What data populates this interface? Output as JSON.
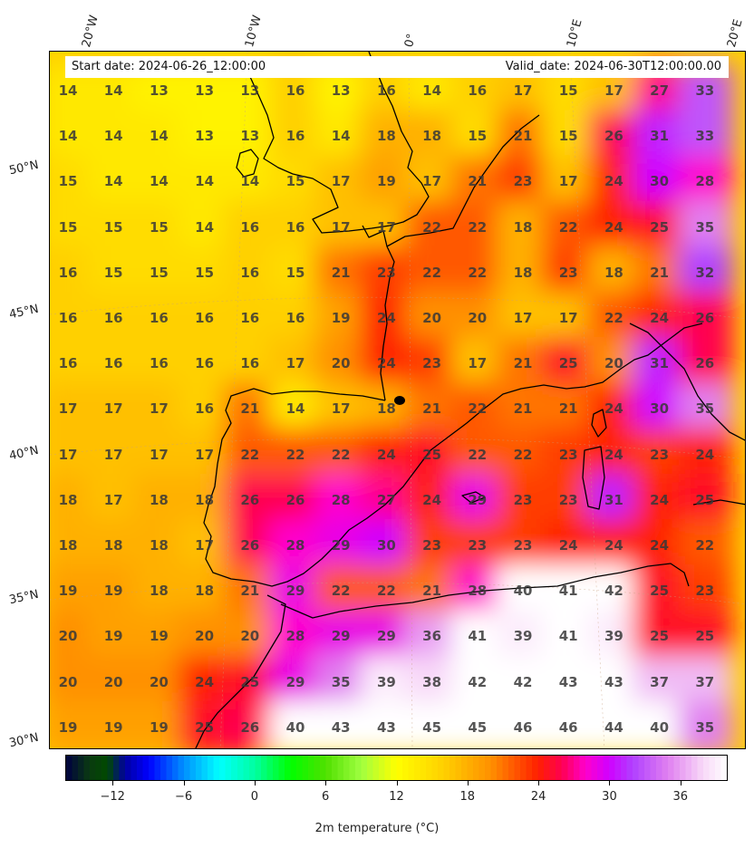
{
  "header": {
    "start_date": "Start date: 2024-06-26_12:00:00",
    "valid_date": "Valid_date: 2024-06-30T12:00:00.00"
  },
  "lon_labels": [
    "20°W",
    "10°W",
    "0°",
    "10°E",
    "20°E"
  ],
  "lat_labels": [
    "50°N",
    "45°N",
    "40°N",
    "35°N",
    "30°N"
  ],
  "grid_values": [
    [
      "14",
      "14",
      "13",
      "13",
      "13",
      "16",
      "13",
      "16",
      "14",
      "16",
      "17",
      "15",
      "17",
      "27",
      "33"
    ],
    [
      "14",
      "14",
      "14",
      "13",
      "13",
      "16",
      "14",
      "18",
      "18",
      "15",
      "21",
      "15",
      "26",
      "31",
      "33"
    ],
    [
      "15",
      "14",
      "14",
      "14",
      "14",
      "15",
      "17",
      "19",
      "17",
      "21",
      "23",
      "17",
      "24",
      "30",
      "28"
    ],
    [
      "15",
      "15",
      "15",
      "14",
      "16",
      "16",
      "17",
      "17",
      "22",
      "22",
      "18",
      "22",
      "24",
      "25",
      "35"
    ],
    [
      "16",
      "15",
      "15",
      "15",
      "16",
      "15",
      "21",
      "23",
      "22",
      "22",
      "18",
      "23",
      "18",
      "21",
      "32"
    ],
    [
      "16",
      "16",
      "16",
      "16",
      "16",
      "16",
      "19",
      "24",
      "20",
      "20",
      "17",
      "17",
      "22",
      "24",
      "26"
    ],
    [
      "16",
      "16",
      "16",
      "16",
      "16",
      "17",
      "20",
      "24",
      "23",
      "17",
      "21",
      "25",
      "20",
      "31",
      "26"
    ],
    [
      "17",
      "17",
      "17",
      "16",
      "21",
      "14",
      "17",
      "18",
      "21",
      "22",
      "21",
      "21",
      "24",
      "30",
      "35"
    ],
    [
      "17",
      "17",
      "17",
      "17",
      "22",
      "22",
      "22",
      "24",
      "25",
      "22",
      "22",
      "23",
      "24",
      "23",
      "24"
    ],
    [
      "18",
      "17",
      "18",
      "18",
      "26",
      "26",
      "28",
      "27",
      "24",
      "29",
      "23",
      "23",
      "31",
      "24",
      "25"
    ],
    [
      "18",
      "18",
      "18",
      "17",
      "26",
      "28",
      "29",
      "30",
      "23",
      "23",
      "23",
      "24",
      "24",
      "24",
      "22"
    ],
    [
      "19",
      "19",
      "18",
      "18",
      "21",
      "29",
      "22",
      "22",
      "21",
      "28",
      "40",
      "41",
      "42",
      "25",
      "23"
    ],
    [
      "20",
      "19",
      "19",
      "20",
      "20",
      "28",
      "29",
      "29",
      "36",
      "41",
      "39",
      "41",
      "39",
      "25",
      "25"
    ],
    [
      "20",
      "20",
      "20",
      "24",
      "25",
      "29",
      "35",
      "39",
      "38",
      "42",
      "42",
      "43",
      "43",
      "37",
      "37"
    ],
    [
      "19",
      "19",
      "19",
      "25",
      "26",
      "40",
      "43",
      "43",
      "45",
      "45",
      "46",
      "46",
      "44",
      "40",
      "35"
    ]
  ],
  "colorbar": {
    "title": "2m temperature ($^\\circ$C)",
    "title_display": "2m temperature (°C)",
    "tick_labels": [
      "−12",
      "−6",
      "0",
      "6",
      "12",
      "18",
      "24",
      "30",
      "36"
    ],
    "tick_values": [
      -12,
      -6,
      0,
      6,
      12,
      18,
      24,
      30,
      36
    ],
    "range": [
      -16,
      40
    ],
    "stops": [
      {
        "v": -16,
        "c": "#000040"
      },
      {
        "v": -14,
        "c": "#0a3a10"
      },
      {
        "v": -12.5,
        "c": "#004a00"
      },
      {
        "v": -11,
        "c": "#0000a0"
      },
      {
        "v": -9,
        "c": "#0000ff"
      },
      {
        "v": -6,
        "c": "#0090ff"
      },
      {
        "v": -3,
        "c": "#00ffff"
      },
      {
        "v": 0,
        "c": "#00ffa0"
      },
      {
        "v": 3,
        "c": "#00ff00"
      },
      {
        "v": 6,
        "c": "#50e000"
      },
      {
        "v": 9,
        "c": "#a0ff40"
      },
      {
        "v": 12,
        "c": "#ffff00"
      },
      {
        "v": 16,
        "c": "#ffd000"
      },
      {
        "v": 20,
        "c": "#ff9000"
      },
      {
        "v": 24,
        "c": "#ff2000"
      },
      {
        "v": 26,
        "c": "#ff0050"
      },
      {
        "v": 28,
        "c": "#ff00cc"
      },
      {
        "v": 30,
        "c": "#d000ff"
      },
      {
        "v": 32,
        "c": "#b040ff"
      },
      {
        "v": 35,
        "c": "#e080f0"
      },
      {
        "v": 38,
        "c": "#f8d8f8"
      },
      {
        "v": 40,
        "c": "#ffffff"
      }
    ]
  }
}
